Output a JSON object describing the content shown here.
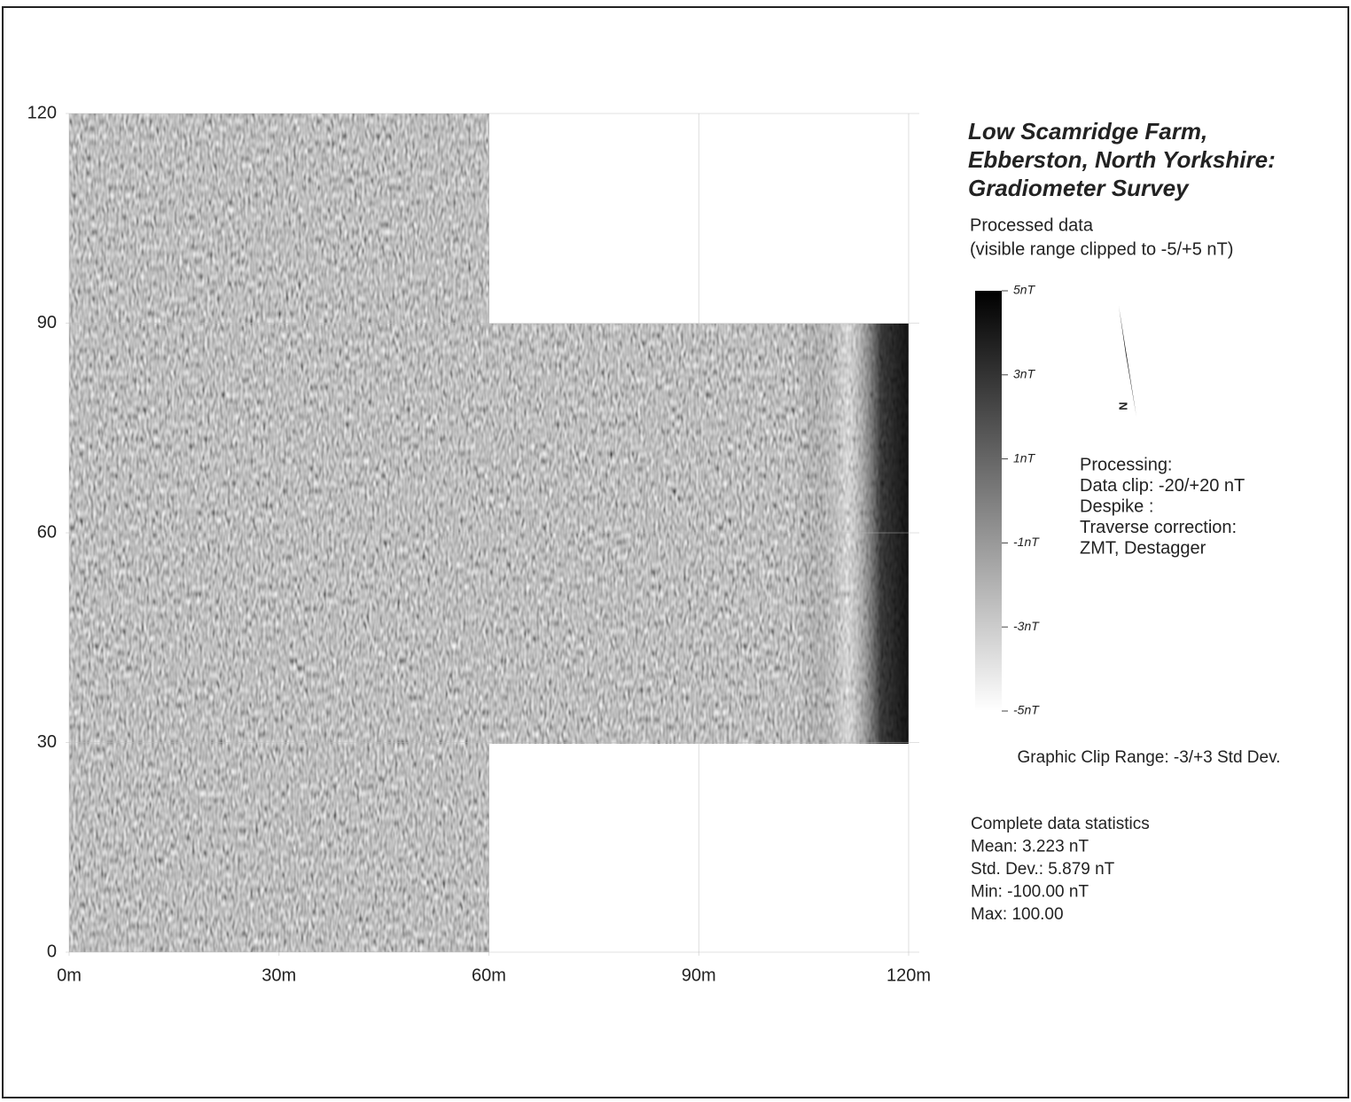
{
  "plot": {
    "x_axis": {
      "range": [
        0,
        120
      ],
      "ticks": [
        {
          "value": 0,
          "label": "0m"
        },
        {
          "value": 30,
          "label": "30m"
        },
        {
          "value": 60,
          "label": "60m"
        },
        {
          "value": 90,
          "label": "90m"
        },
        {
          "value": 120,
          "label": "120m"
        }
      ]
    },
    "y_axis": {
      "range": [
        0,
        120
      ],
      "ticks": [
        0,
        30,
        60,
        90,
        120
      ]
    }
  },
  "legend": {
    "title": [
      "Low Scamridge Farm,",
      "Ebberston, North Yorkshire:",
      "Gradiometer Survey"
    ],
    "subtitle": [
      "Processed data",
      "(visible range clipped to -5/+5 nT)"
    ],
    "colorbar": {
      "range": [
        -5,
        5
      ],
      "ticks": [
        {
          "value": 5,
          "label": "5nT"
        },
        {
          "value": 3,
          "label": "3nT"
        },
        {
          "value": 1,
          "label": "1nT"
        },
        {
          "value": -1,
          "label": "-1nT"
        },
        {
          "value": -3,
          "label": "-3nT"
        },
        {
          "value": -5,
          "label": "-5nT"
        }
      ]
    },
    "north_label": "N",
    "processing": [
      "Processing:",
      "Data clip: -20/+20 nT",
      "Despike :",
      "Traverse correction:",
      "ZMT, Destagger"
    ],
    "clip_range": "Graphic Clip Range: -3/+3 Std Dev.",
    "statistics": [
      "Complete data statistics",
      "Mean: 3.223 nT",
      "Std. Dev.: 5.879 nT",
      "Min: -100.00 nT",
      "Max: 100.00"
    ]
  }
}
